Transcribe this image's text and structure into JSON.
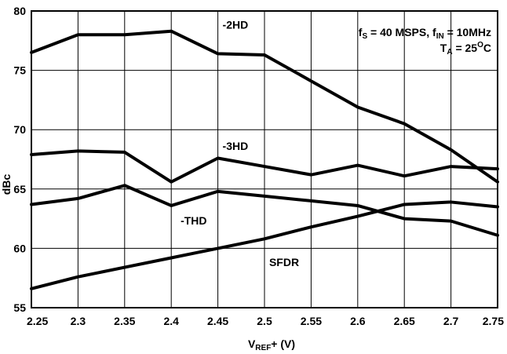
{
  "chart_data": {
    "type": "line",
    "xlabel": {
      "main": "V",
      "sub": "REF",
      "rest": "+ (V)"
    },
    "ylabel": "dBc",
    "xlim": [
      2.25,
      2.75
    ],
    "ylim": [
      55,
      80
    ],
    "grid": true,
    "x_ticks": [
      "2.25",
      "2.3",
      "2.35",
      "2.4",
      "2.45",
      "2.5",
      "2.55",
      "2.6",
      "2.65",
      "2.7",
      "2.75"
    ],
    "y_ticks": [
      "55",
      "60",
      "65",
      "70",
      "75",
      "80"
    ],
    "x": [
      2.25,
      2.3,
      2.35,
      2.4,
      2.45,
      2.5,
      2.55,
      2.6,
      2.65,
      2.7,
      2.75
    ],
    "series": [
      {
        "name": "-2HD",
        "values": [
          76.5,
          78.0,
          78.0,
          78.3,
          76.4,
          76.3,
          74.1,
          71.9,
          70.5,
          68.3,
          65.6
        ]
      },
      {
        "name": "-3HD",
        "values": [
          67.9,
          68.2,
          68.1,
          65.6,
          67.6,
          66.9,
          66.2,
          67.0,
          66.1,
          66.9,
          66.7
        ]
      },
      {
        "name": "-THD",
        "values": [
          63.7,
          64.2,
          65.3,
          63.6,
          64.8,
          64.4,
          64.0,
          63.6,
          62.5,
          62.3,
          61.1
        ]
      },
      {
        "name": "SFDR",
        "values": [
          56.6,
          57.6,
          58.4,
          59.2,
          60.0,
          60.8,
          61.8,
          62.7,
          63.7,
          63.9,
          63.5
        ]
      }
    ],
    "conditions": {
      "line1": {
        "f1": "f",
        "f1_sub": "S",
        "f1_rest": " = 40 MSPS, f",
        "f2_sub": "IN",
        "f2_rest": " = 10MHz"
      },
      "line2": {
        "t": "T",
        "t_sub": "A",
        "t_rest": " = 25",
        "t_sup": "O",
        "t_end": "C"
      }
    }
  }
}
